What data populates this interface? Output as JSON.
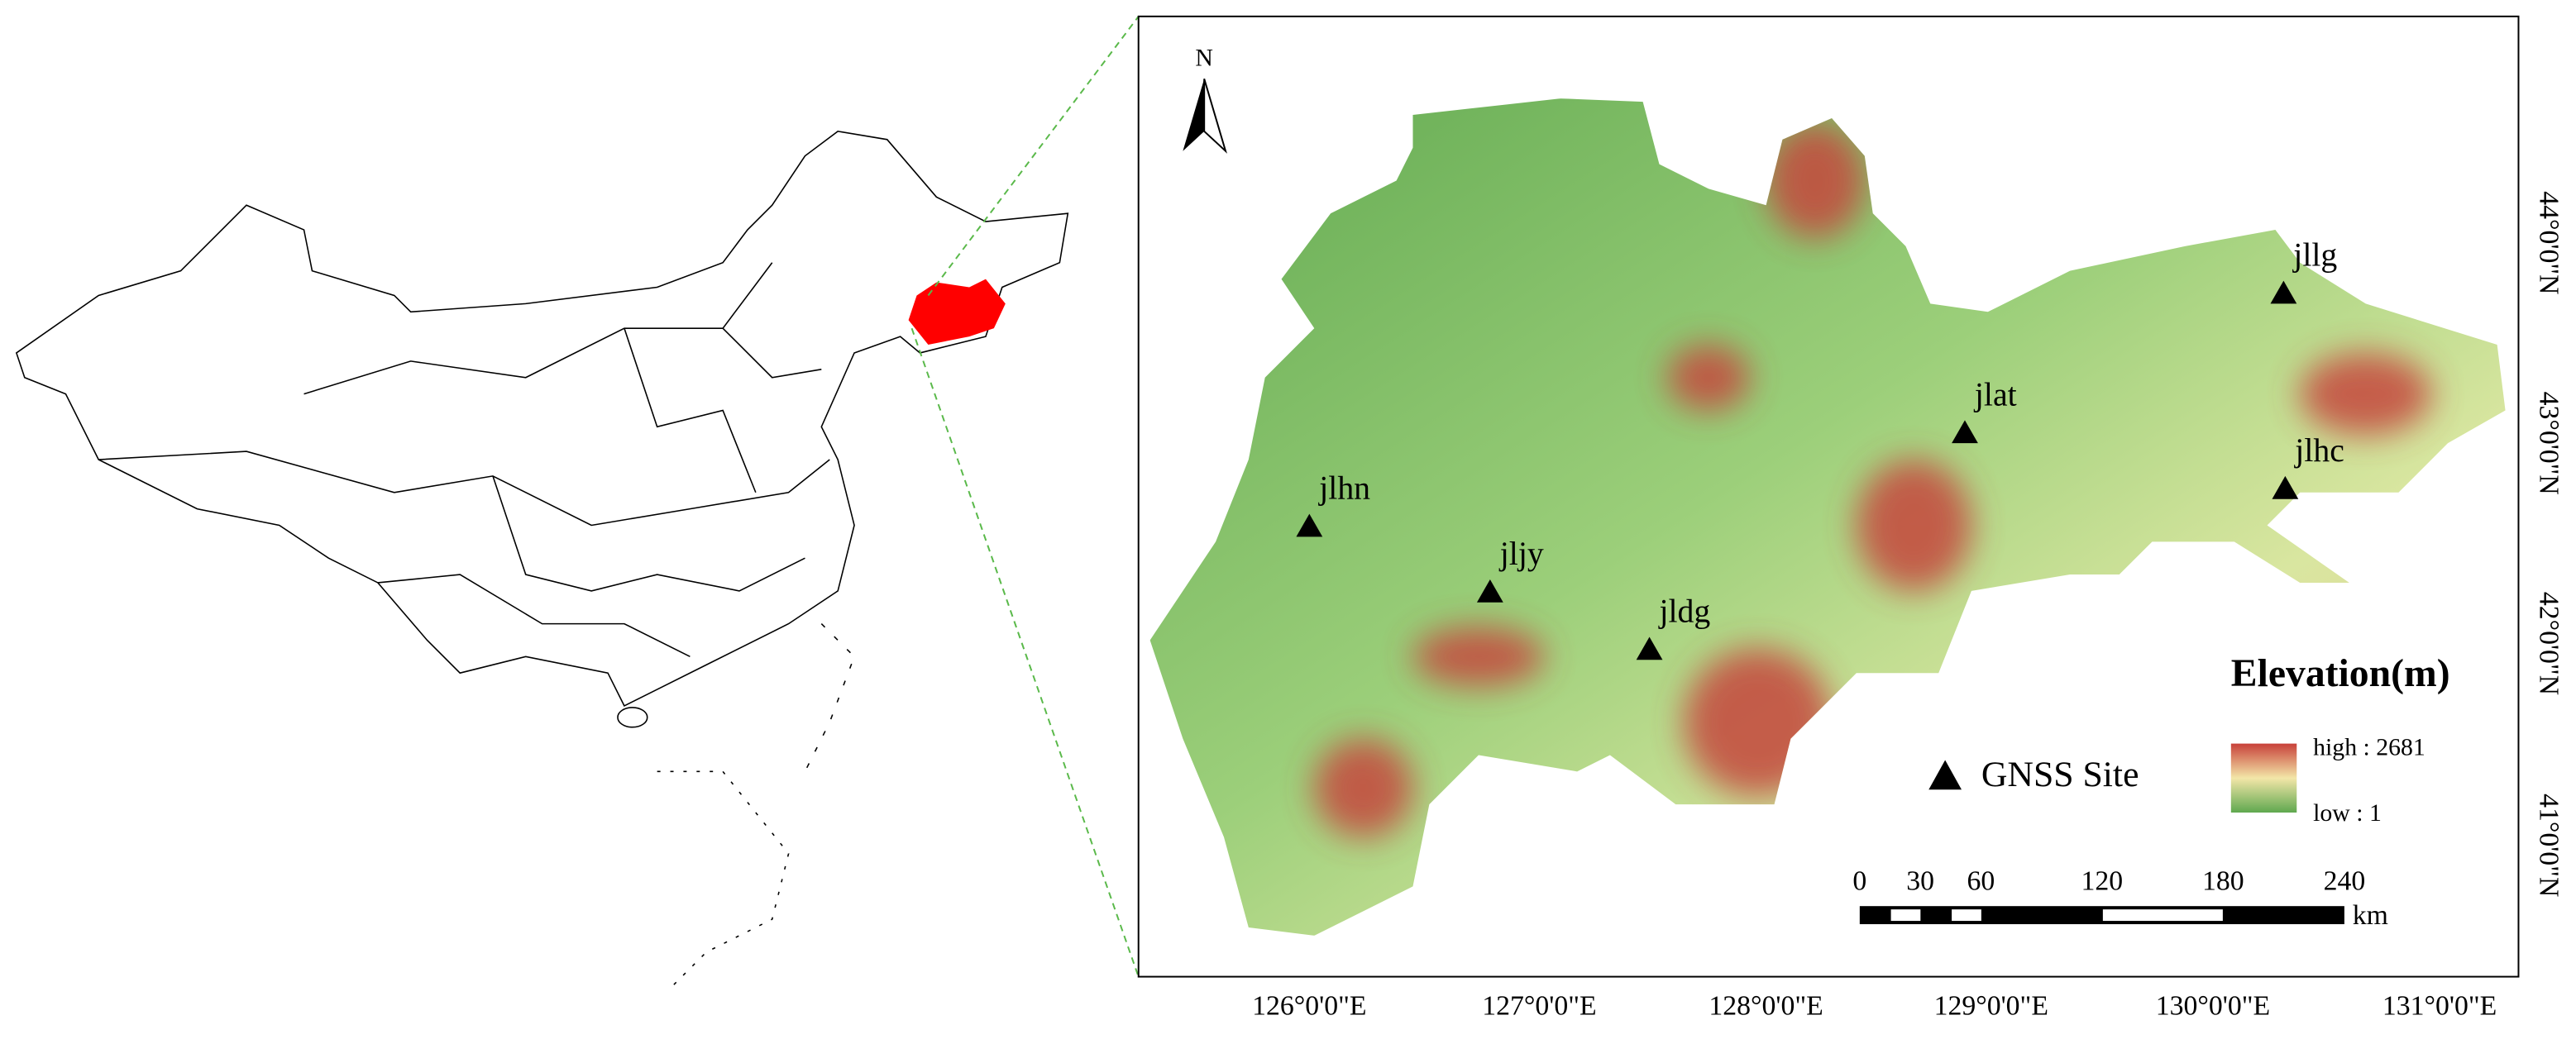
{
  "north": "N",
  "sites": [
    {
      "label": "jlhn"
    },
    {
      "label": "jljy"
    },
    {
      "label": "jldg"
    },
    {
      "label": "jlat"
    },
    {
      "label": "jllg"
    },
    {
      "label": "jlhc"
    }
  ],
  "x_axis": {
    "ticks": [
      "126°0'0\"E",
      "127°0'0\"E",
      "128°0'0\"E",
      "129°0'0\"E",
      "130°0'0\"E",
      "131°0'0\"E"
    ]
  },
  "y_axis": {
    "ticks": [
      "44°0'0\"N",
      "43°0'0\"N",
      "42°0'0\"N",
      "41°0'0\"N"
    ]
  },
  "legend": {
    "title": "Elevation(m)",
    "high": "high : 2681",
    "low": "low : 1",
    "site": "GNSS Site"
  },
  "scale_bar": {
    "ticks": [
      0,
      30,
      60,
      120,
      180,
      240
    ],
    "unit": "km"
  }
}
